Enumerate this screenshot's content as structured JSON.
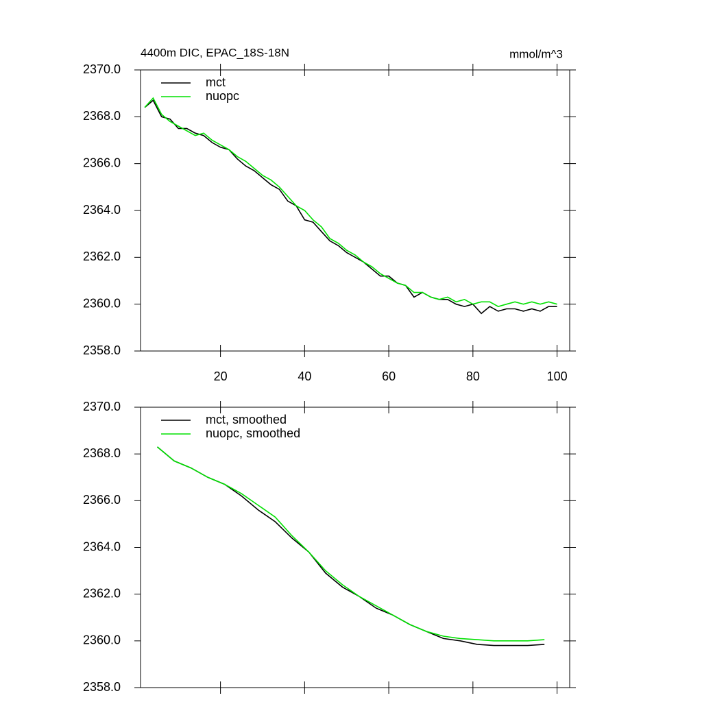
{
  "chart_data": [
    {
      "type": "line",
      "title": "4400m DIC, EPAC_18S-18N",
      "units": "mmol/m^3",
      "x": [
        2,
        4,
        6,
        8,
        10,
        12,
        14,
        16,
        18,
        20,
        22,
        24,
        26,
        28,
        30,
        32,
        34,
        36,
        38,
        40,
        42,
        44,
        46,
        48,
        50,
        52,
        54,
        56,
        58,
        60,
        62,
        64,
        66,
        68,
        70,
        72,
        74,
        76,
        78,
        80,
        82,
        84,
        86,
        88,
        90,
        92,
        94,
        96,
        98,
        100
      ],
      "series": [
        {
          "name": "mct",
          "color": "#000000",
          "values": [
            2368.4,
            2368.7,
            2368.0,
            2367.9,
            2367.5,
            2367.5,
            2367.3,
            2367.2,
            2366.9,
            2366.7,
            2366.6,
            2366.2,
            2365.9,
            2365.7,
            2365.4,
            2365.1,
            2364.9,
            2364.4,
            2364.2,
            2363.6,
            2363.5,
            2363.1,
            2362.7,
            2362.5,
            2362.2,
            2362.0,
            2361.8,
            2361.5,
            2361.2,
            2361.2,
            2360.9,
            2360.8,
            2360.3,
            2360.5,
            2360.3,
            2360.2,
            2360.2,
            2360.0,
            2359.9,
            2360.0,
            2359.6,
            2359.9,
            2359.7,
            2359.8,
            2359.8,
            2359.7,
            2359.8,
            2359.7,
            2359.9,
            2359.9
          ]
        },
        {
          "name": "nuopc",
          "color": "#00e000",
          "values": [
            2368.4,
            2368.8,
            2368.1,
            2367.8,
            2367.6,
            2367.4,
            2367.2,
            2367.3,
            2367.0,
            2366.8,
            2366.6,
            2366.3,
            2366.1,
            2365.8,
            2365.5,
            2365.3,
            2365.0,
            2364.6,
            2364.2,
            2364.0,
            2363.6,
            2363.3,
            2362.8,
            2362.6,
            2362.3,
            2362.1,
            2361.8,
            2361.6,
            2361.3,
            2361.1,
            2360.9,
            2360.8,
            2360.5,
            2360.5,
            2360.3,
            2360.2,
            2360.3,
            2360.1,
            2360.2,
            2360.0,
            2360.1,
            2360.1,
            2359.9,
            2360.0,
            2360.1,
            2360.0,
            2360.1,
            2360.0,
            2360.1,
            2360.0
          ]
        }
      ],
      "xlim": [
        1,
        103
      ],
      "xticks": [
        20,
        40,
        60,
        80,
        100
      ],
      "ylim": [
        2358,
        2370
      ],
      "yticks": [
        {
          "value": 2358,
          "label": "2358.0"
        },
        {
          "value": 2360,
          "label": "2360.0"
        },
        {
          "value": 2362,
          "label": "2362.0"
        },
        {
          "value": 2364,
          "label": "2364.0"
        },
        {
          "value": 2366,
          "label": "2366.0"
        },
        {
          "value": 2368,
          "label": "2368.0"
        },
        {
          "value": 2370,
          "label": "2370.0"
        }
      ],
      "legend": "upper left"
    },
    {
      "type": "line",
      "x": [
        5,
        9,
        13,
        17,
        21,
        25,
        29,
        33,
        37,
        41,
        45,
        49,
        53,
        57,
        61,
        65,
        69,
        73,
        77,
        81,
        85,
        89,
        93,
        97
      ],
      "series": [
        {
          "name": "mct, smoothed",
          "color": "#000000",
          "values": [
            2368.3,
            2367.7,
            2367.4,
            2367.0,
            2366.7,
            2366.2,
            2365.6,
            2365.1,
            2364.4,
            2363.8,
            2362.9,
            2362.3,
            2361.9,
            2361.4,
            2361.1,
            2360.7,
            2360.4,
            2360.1,
            2360.0,
            2359.85,
            2359.8,
            2359.8,
            2359.8,
            2359.85
          ]
        },
        {
          "name": "nuopc, smoothed",
          "color": "#00e000",
          "values": [
            2368.3,
            2367.7,
            2367.4,
            2367.0,
            2366.7,
            2366.3,
            2365.8,
            2365.3,
            2364.5,
            2363.8,
            2363.0,
            2362.4,
            2361.9,
            2361.5,
            2361.1,
            2360.7,
            2360.4,
            2360.2,
            2360.1,
            2360.05,
            2360.0,
            2360.0,
            2360.0,
            2360.05
          ]
        }
      ],
      "xlim": [
        1,
        103
      ],
      "xticks": [
        20,
        40,
        60,
        80,
        100
      ],
      "ylim": [
        2358,
        2370
      ],
      "yticks": [
        {
          "value": 2358,
          "label": "2358.0"
        },
        {
          "value": 2360,
          "label": "2360.0"
        },
        {
          "value": 2362,
          "label": "2362.0"
        },
        {
          "value": 2364,
          "label": "2364.0"
        },
        {
          "value": 2366,
          "label": "2366.0"
        },
        {
          "value": 2368,
          "label": "2368.0"
        },
        {
          "value": 2370,
          "label": "2370.0"
        }
      ],
      "legend": "upper left"
    }
  ]
}
